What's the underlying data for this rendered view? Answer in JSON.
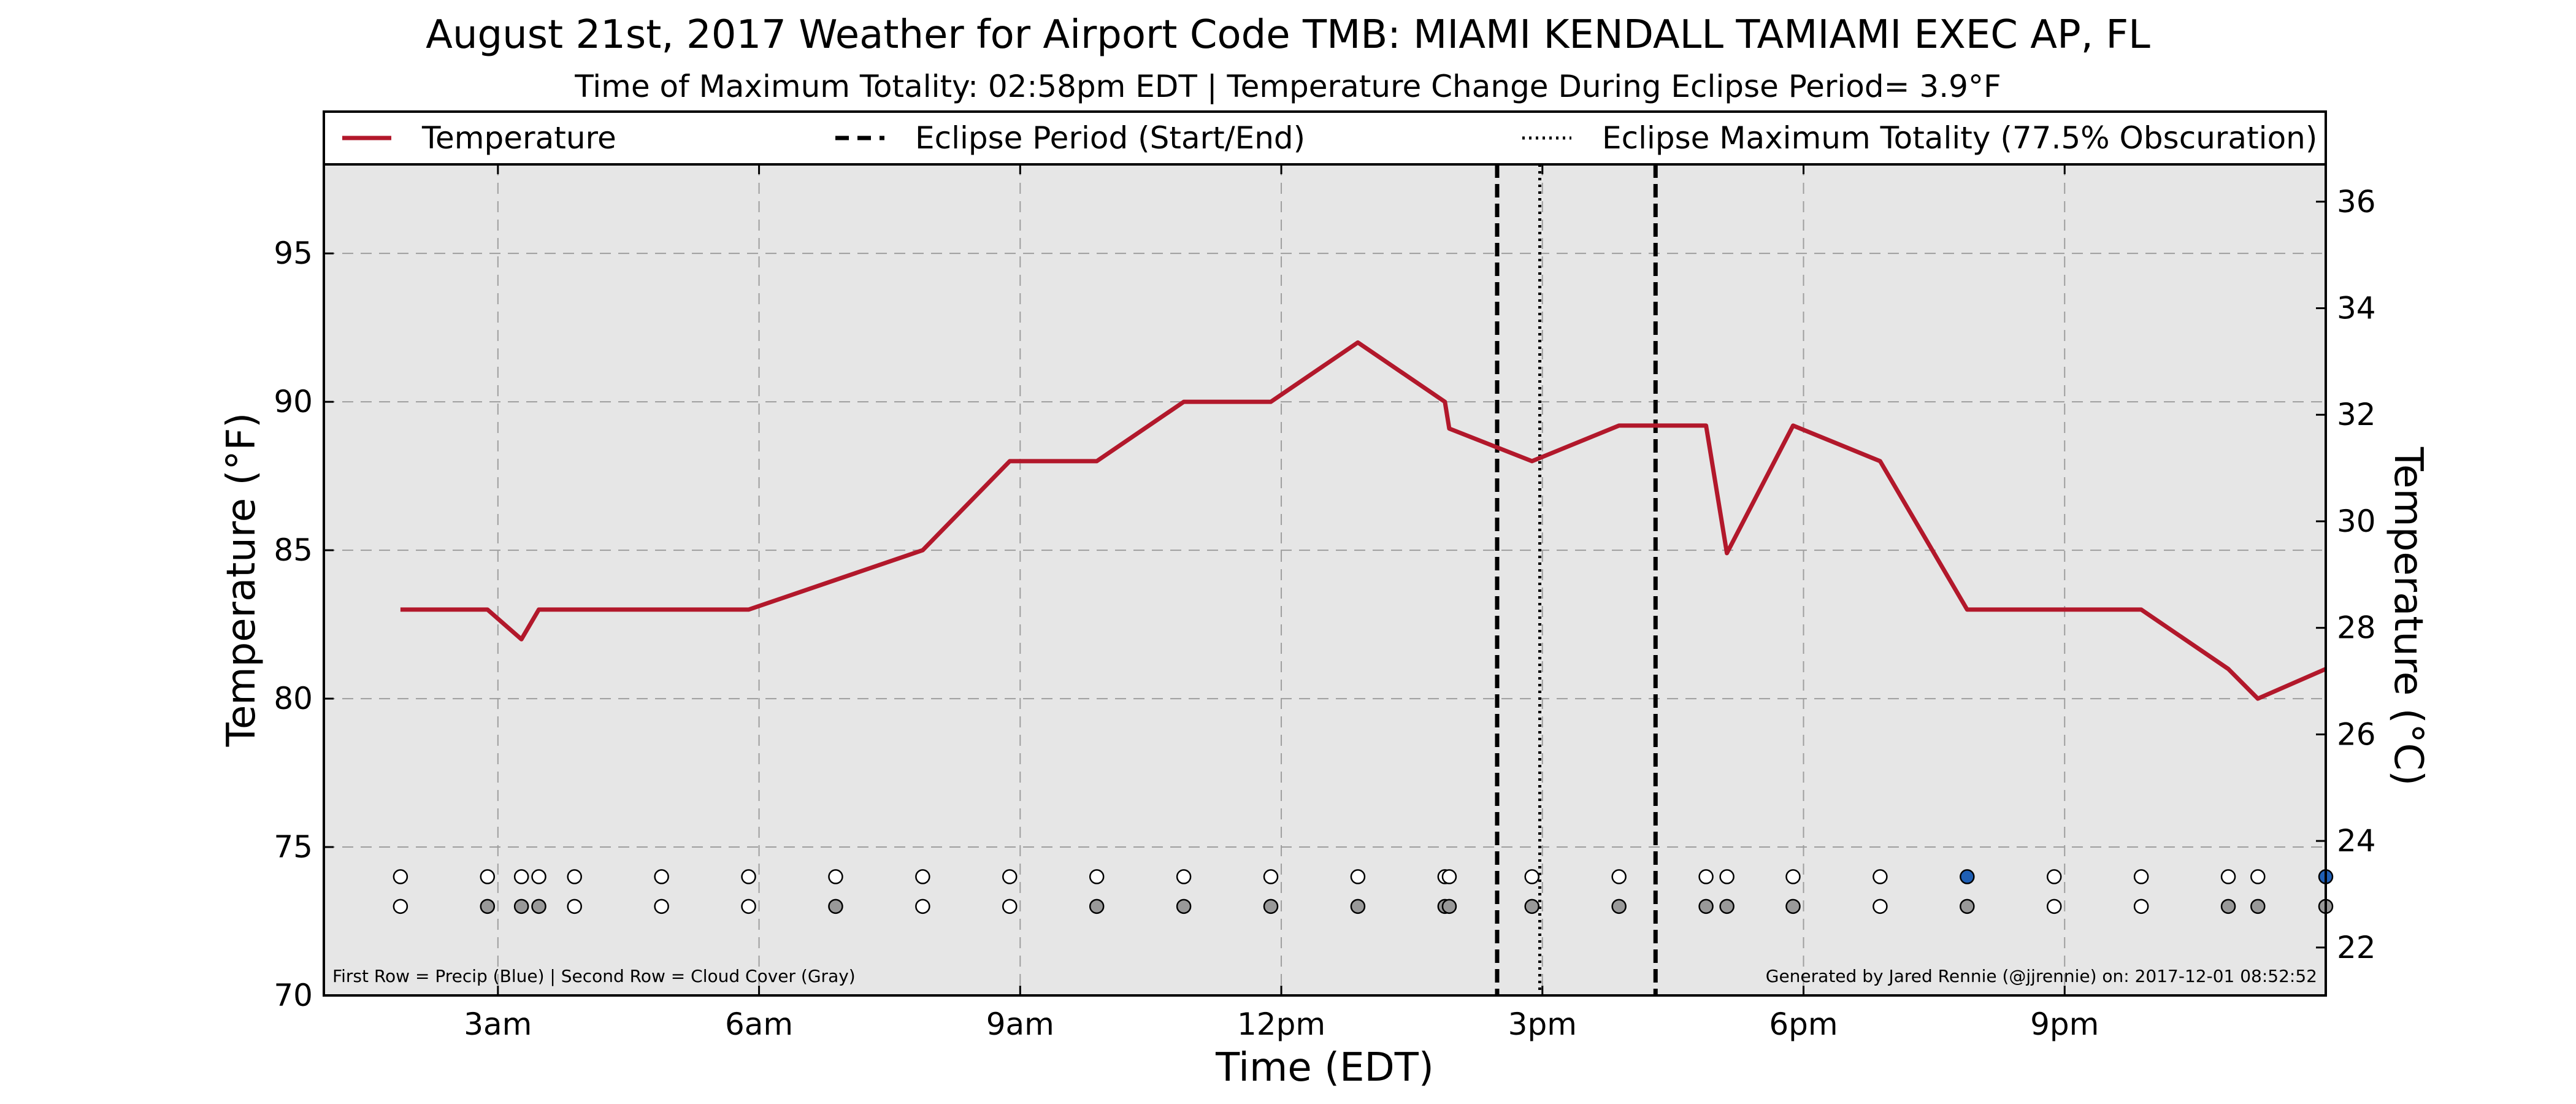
{
  "chart_data": {
    "type": "line",
    "title": "August 21st, 2017 Weather for Airport Code TMB: MIAMI KENDALL TAMIAMI EXEC AP, FL",
    "subtitle": "Time of Maximum Totality: 02:58pm EDT | Temperature Change During Eclipse Period= 3.9°F",
    "xlabel": "Time (EDT)",
    "ylabel": "Temperature (°F)",
    "ylabel_right": "Temperature (°C)",
    "xlim": [
      1.0,
      24.0
    ],
    "ylim": [
      70,
      98
    ],
    "ylim_right": [
      21.1,
      36.7
    ],
    "x_ticks": [
      {
        "value": 3,
        "label": "3am"
      },
      {
        "value": 6,
        "label": "6am"
      },
      {
        "value": 9,
        "label": "9am"
      },
      {
        "value": 12,
        "label": "12pm"
      },
      {
        "value": 15,
        "label": "3pm"
      },
      {
        "value": 18,
        "label": "6pm"
      },
      {
        "value": 21,
        "label": "9pm"
      }
    ],
    "y_ticks": [
      70,
      75,
      80,
      85,
      90,
      95
    ],
    "y_ticks_right": [
      22,
      24,
      26,
      28,
      30,
      32,
      34,
      36
    ],
    "grid": true,
    "legend_position": "top",
    "legend": [
      {
        "label": "Temperature",
        "style": "solid",
        "color": "#b2182b"
      },
      {
        "label": "Eclipse Period (Start/End)",
        "style": "dashed",
        "color": "#000000"
      },
      {
        "label": "Eclipse Maximum Totality (77.5% Obscuration)",
        "style": "dotted",
        "color": "#000000"
      }
    ],
    "series": [
      {
        "name": "Temperature",
        "color": "#b2182b",
        "points": [
          [
            1.88,
            83.0
          ],
          [
            2.88,
            83.0
          ],
          [
            3.27,
            82.0
          ],
          [
            3.47,
            83.0
          ],
          [
            3.88,
            83.0
          ],
          [
            4.88,
            83.0
          ],
          [
            5.88,
            83.0
          ],
          [
            6.88,
            84.0
          ],
          [
            7.88,
            85.0
          ],
          [
            8.88,
            88.0
          ],
          [
            9.88,
            88.0
          ],
          [
            10.88,
            90.0
          ],
          [
            11.88,
            90.0
          ],
          [
            12.88,
            92.0
          ],
          [
            13.88,
            90.0
          ],
          [
            13.93,
            89.1
          ],
          [
            14.88,
            88.0
          ],
          [
            15.88,
            89.2
          ],
          [
            16.88,
            89.2
          ],
          [
            17.12,
            84.9
          ],
          [
            17.88,
            89.2
          ],
          [
            18.88,
            88.0
          ],
          [
            19.88,
            83.0
          ],
          [
            20.88,
            83.0
          ],
          [
            21.88,
            83.0
          ],
          [
            22.88,
            81.0
          ],
          [
            23.22,
            80.0
          ],
          [
            24.0,
            81.0
          ]
        ]
      }
    ],
    "eclipse_start": 14.48,
    "eclipse_end": 16.3,
    "eclipse_max": 14.97,
    "markers_row1_precip": {
      "label": "Precip",
      "points": [
        [
          1.88,
          "none"
        ],
        [
          2.88,
          "none"
        ],
        [
          3.27,
          "none"
        ],
        [
          3.47,
          "none"
        ],
        [
          3.88,
          "none"
        ],
        [
          4.88,
          "none"
        ],
        [
          5.88,
          "none"
        ],
        [
          6.88,
          "none"
        ],
        [
          7.88,
          "none"
        ],
        [
          8.88,
          "none"
        ],
        [
          9.88,
          "none"
        ],
        [
          10.88,
          "none"
        ],
        [
          11.88,
          "none"
        ],
        [
          12.88,
          "none"
        ],
        [
          13.88,
          "none"
        ],
        [
          13.93,
          "none"
        ],
        [
          14.88,
          "none"
        ],
        [
          15.88,
          "none"
        ],
        [
          16.88,
          "none"
        ],
        [
          17.12,
          "none"
        ],
        [
          17.88,
          "none"
        ],
        [
          18.88,
          "none"
        ],
        [
          19.88,
          "precip"
        ],
        [
          20.88,
          "none"
        ],
        [
          21.88,
          "none"
        ],
        [
          22.88,
          "none"
        ],
        [
          23.22,
          "none"
        ],
        [
          24.0,
          "precip"
        ]
      ]
    },
    "markers_row2_cloud": {
      "label": "Cloud Cover",
      "points": [
        [
          1.88,
          "clear"
        ],
        [
          2.88,
          "cloud"
        ],
        [
          3.27,
          "cloud"
        ],
        [
          3.47,
          "cloud"
        ],
        [
          3.88,
          "clear"
        ],
        [
          4.88,
          "clear"
        ],
        [
          5.88,
          "clear"
        ],
        [
          6.88,
          "cloud"
        ],
        [
          7.88,
          "clear"
        ],
        [
          8.88,
          "clear"
        ],
        [
          9.88,
          "cloud"
        ],
        [
          10.88,
          "cloud"
        ],
        [
          11.88,
          "cloud"
        ],
        [
          12.88,
          "cloud"
        ],
        [
          13.88,
          "cloud"
        ],
        [
          13.93,
          "cloud"
        ],
        [
          14.88,
          "cloud"
        ],
        [
          15.88,
          "cloud"
        ],
        [
          16.88,
          "cloud"
        ],
        [
          17.12,
          "cloud"
        ],
        [
          17.88,
          "cloud"
        ],
        [
          18.88,
          "clear"
        ],
        [
          19.88,
          "cloud"
        ],
        [
          20.88,
          "clear"
        ],
        [
          21.88,
          "clear"
        ],
        [
          22.88,
          "cloud"
        ],
        [
          23.22,
          "cloud"
        ],
        [
          24.0,
          "cloud"
        ]
      ]
    },
    "marker_rows_y": [
      74.0,
      73.0
    ],
    "colors": {
      "plot_background": "#e6e6e6",
      "temperature": "#b2182b",
      "precip": "#1f5fb4",
      "cloud": "#999999",
      "clear": "#ffffff"
    },
    "footnote_left": "First Row = Precip (Blue) | Second Row = Cloud Cover (Gray)",
    "footnote_right": "Generated by Jared Rennie (@jjrennie) on: 2017-12-01 08:52:52"
  }
}
